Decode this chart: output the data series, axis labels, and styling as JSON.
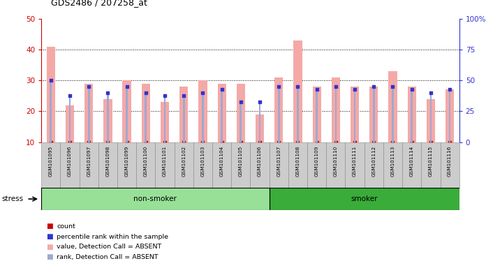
{
  "title": "GDS2486 / 207258_at",
  "samples": [
    "GSM101095",
    "GSM101096",
    "GSM101097",
    "GSM101098",
    "GSM101099",
    "GSM101100",
    "GSM101101",
    "GSM101102",
    "GSM101103",
    "GSM101104",
    "GSM101105",
    "GSM101106",
    "GSM101107",
    "GSM101108",
    "GSM101109",
    "GSM101110",
    "GSM101111",
    "GSM101112",
    "GSM101113",
    "GSM101114",
    "GSM101115",
    "GSM101116"
  ],
  "bar_values": [
    41,
    22,
    29,
    24,
    30,
    29,
    23,
    28,
    30,
    29,
    29,
    19,
    31,
    43,
    28,
    31,
    28,
    28,
    33,
    28,
    24,
    27
  ],
  "rank_values": [
    30,
    25,
    28,
    26,
    28,
    26,
    25,
    25,
    26,
    27,
    23,
    23,
    28,
    28,
    27,
    28,
    27,
    28,
    28,
    27,
    26,
    27
  ],
  "bar_color": "#f4a9a8",
  "rank_color": "#a0a8d0",
  "count_color": "#cc0000",
  "count_rank_color": "#3333cc",
  "left_ylim": [
    10,
    50
  ],
  "right_ylim": [
    0,
    100
  ],
  "left_yticks": [
    10,
    20,
    30,
    40,
    50
  ],
  "right_yticks": [
    0,
    25,
    50,
    75,
    100
  ],
  "non_smoker_count": 12,
  "smoker_count": 10,
  "non_smoker_color": "#98e098",
  "smoker_color": "#3aac3a",
  "bg_color": "#cccccc",
  "stress_label": "stress",
  "group_label_nonsmoker": "non-smoker",
  "group_label_smoker": "smoker",
  "legend_items": [
    {
      "label": "count",
      "color": "#cc0000"
    },
    {
      "label": "percentile rank within the sample",
      "color": "#3333cc"
    },
    {
      "label": "value, Detection Call = ABSENT",
      "color": "#f4a9a8"
    },
    {
      "label": "rank, Detection Call = ABSENT",
      "color": "#a0a8d0"
    }
  ]
}
